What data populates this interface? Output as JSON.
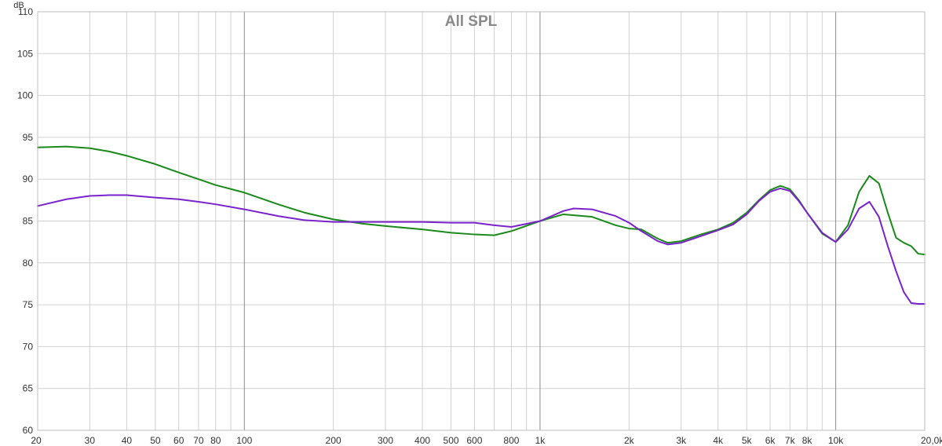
{
  "chart_data": {
    "type": "line",
    "title": "All SPL",
    "ylabel": "dB",
    "x_scale": "log",
    "grid": true,
    "xlim": [
      20,
      20000
    ],
    "ylim": [
      60,
      110
    ],
    "y_ticks": [
      60,
      65,
      70,
      75,
      80,
      85,
      90,
      95,
      100,
      105,
      110
    ],
    "x_ticks": [
      {
        "value": 20,
        "label": "20"
      },
      {
        "value": 30,
        "label": "30"
      },
      {
        "value": 40,
        "label": "40"
      },
      {
        "value": 50,
        "label": "50"
      },
      {
        "value": 60,
        "label": "60"
      },
      {
        "value": 70,
        "label": "70"
      },
      {
        "value": 80,
        "label": "80"
      },
      {
        "value": 100,
        "label": "100"
      },
      {
        "value": 200,
        "label": "200"
      },
      {
        "value": 300,
        "label": "300"
      },
      {
        "value": 400,
        "label": "400"
      },
      {
        "value": 500,
        "label": "500"
      },
      {
        "value": 600,
        "label": "600"
      },
      {
        "value": 800,
        "label": "800"
      },
      {
        "value": 1000,
        "label": "1k"
      },
      {
        "value": 2000,
        "label": "2k"
      },
      {
        "value": 3000,
        "label": "3k"
      },
      {
        "value": 4000,
        "label": "4k"
      },
      {
        "value": 5000,
        "label": "5k"
      },
      {
        "value": 6000,
        "label": "6k"
      },
      {
        "value": 7000,
        "label": "7k"
      },
      {
        "value": 8000,
        "label": "8k"
      },
      {
        "value": 10000,
        "label": "10k"
      },
      {
        "value": 20000,
        "label": "20,0kHz"
      }
    ],
    "series": [
      {
        "color": "#1a8a1a",
        "x": [
          20,
          25,
          30,
          35,
          40,
          50,
          60,
          70,
          80,
          100,
          130,
          160,
          200,
          250,
          300,
          400,
          500,
          600,
          700,
          800,
          1000,
          1200,
          1500,
          1800,
          2000,
          2200,
          2500,
          2700,
          3000,
          3500,
          4000,
          4500,
          5000,
          5500,
          6000,
          6500,
          7000,
          7500,
          8000,
          9000,
          10000,
          11000,
          12000,
          13000,
          14000,
          15000,
          16000,
          17000,
          18000,
          19000,
          20000
        ],
        "y": [
          93.8,
          93.9,
          93.7,
          93.3,
          92.8,
          91.8,
          90.8,
          90.0,
          89.3,
          88.4,
          87.0,
          86.0,
          85.2,
          84.7,
          84.4,
          84.0,
          83.6,
          83.4,
          83.3,
          83.8,
          85.0,
          85.8,
          85.5,
          84.5,
          84.1,
          84.0,
          82.9,
          82.4,
          82.6,
          83.4,
          84.0,
          84.8,
          86.0,
          87.5,
          88.7,
          89.2,
          88.8,
          87.5,
          86.0,
          83.5,
          82.5,
          84.5,
          88.5,
          90.4,
          89.5,
          86.0,
          83.0,
          82.4,
          82.0,
          81.1,
          81.0
        ]
      },
      {
        "color": "#7a22cc",
        "x": [
          20,
          25,
          30,
          35,
          40,
          50,
          60,
          70,
          80,
          100,
          130,
          160,
          200,
          250,
          300,
          400,
          500,
          600,
          700,
          800,
          1000,
          1200,
          1300,
          1500,
          1800,
          2000,
          2200,
          2500,
          2700,
          3000,
          3500,
          4000,
          4500,
          5000,
          5500,
          6000,
          6500,
          7000,
          7500,
          8000,
          9000,
          10000,
          11000,
          12000,
          13000,
          14000,
          15000,
          16000,
          17000,
          18000,
          19000,
          20000
        ],
        "y": [
          86.8,
          87.6,
          88.0,
          88.1,
          88.1,
          87.8,
          87.6,
          87.3,
          87.0,
          86.4,
          85.6,
          85.1,
          84.9,
          84.9,
          84.9,
          84.9,
          84.8,
          84.8,
          84.5,
          84.3,
          85.0,
          86.2,
          86.5,
          86.4,
          85.6,
          84.8,
          83.8,
          82.6,
          82.2,
          82.4,
          83.2,
          83.9,
          84.6,
          85.8,
          87.4,
          88.5,
          88.9,
          88.6,
          87.4,
          86.0,
          83.6,
          82.5,
          84.0,
          86.5,
          87.3,
          85.5,
          82.0,
          79.0,
          76.5,
          75.2,
          75.1,
          75.1
        ]
      }
    ]
  }
}
